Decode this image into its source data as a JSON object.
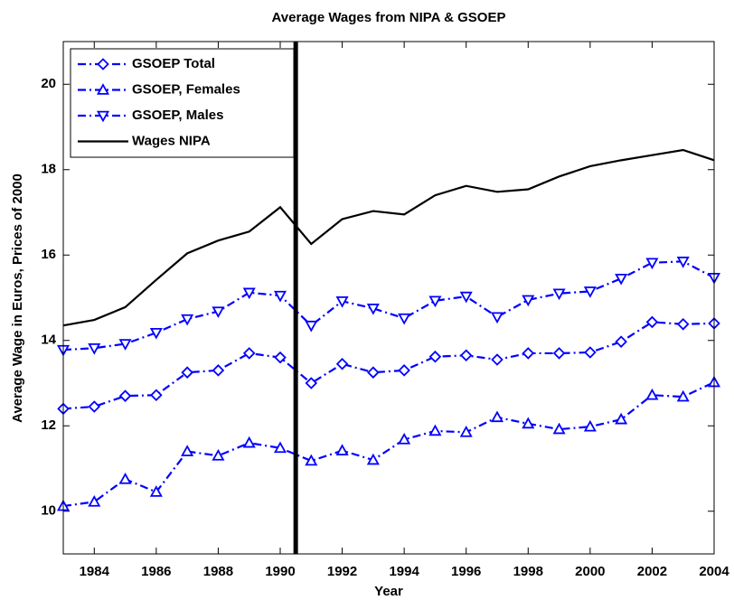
{
  "chart_data": {
    "type": "line",
    "title": "Average Wages from NIPA & GSOEP",
    "xlabel": "Year",
    "ylabel": "Average Wage in Euros, Prices of 2000",
    "x": [
      1983,
      1984,
      1985,
      1986,
      1987,
      1988,
      1989,
      1990,
      1991,
      1992,
      1993,
      1994,
      1995,
      1996,
      1997,
      1998,
      1999,
      2000,
      2001,
      2002,
      2003,
      2004
    ],
    "series": [
      {
        "name": "GSOEP Total",
        "color": "#0000ff",
        "marker": "diamond",
        "linestyle": "-.",
        "values": [
          12.4,
          12.45,
          12.7,
          12.72,
          13.25,
          13.3,
          13.7,
          13.6,
          13.0,
          13.45,
          13.25,
          13.3,
          13.62,
          13.65,
          13.55,
          13.7,
          13.7,
          13.72,
          13.97,
          14.43,
          14.38,
          14.4
        ]
      },
      {
        "name": "GSOEP, Females",
        "color": "#0000ff",
        "marker": "triangle-up",
        "linestyle": "-.",
        "values": [
          10.12,
          10.22,
          10.75,
          10.45,
          11.4,
          11.3,
          11.6,
          11.48,
          11.18,
          11.42,
          11.2,
          11.68,
          11.88,
          11.85,
          12.2,
          12.05,
          11.92,
          11.98,
          12.15,
          12.72,
          12.68,
          13.02
        ]
      },
      {
        "name": "GSOEP, Males",
        "color": "#0000ff",
        "marker": "triangle-down",
        "linestyle": "-.",
        "values": [
          13.78,
          13.82,
          13.92,
          14.18,
          14.5,
          14.68,
          15.12,
          15.05,
          14.35,
          14.92,
          14.75,
          14.52,
          14.93,
          15.03,
          14.55,
          14.95,
          15.1,
          15.15,
          15.45,
          15.82,
          15.85,
          15.47
        ]
      },
      {
        "name": "Wages NIPA",
        "color": "#000000",
        "linestyle": "-",
        "values": [
          14.35,
          14.48,
          14.78,
          15.42,
          16.04,
          16.34,
          16.55,
          17.12,
          16.26,
          16.84,
          17.03,
          16.95,
          17.4,
          17.62,
          17.48,
          17.54,
          17.84,
          18.08,
          18.22,
          18.34,
          18.46,
          18.22
        ]
      }
    ],
    "vline": 1990.5,
    "xlim": [
      1983,
      2004
    ],
    "xticks": [
      1984,
      1986,
      1988,
      1990,
      1992,
      1994,
      1996,
      1998,
      2000,
      2002,
      2004
    ],
    "ylim": [
      9,
      21
    ],
    "yticks": [
      10,
      12,
      14,
      16,
      18,
      20
    ],
    "grid": false,
    "legend": "upper left"
  }
}
